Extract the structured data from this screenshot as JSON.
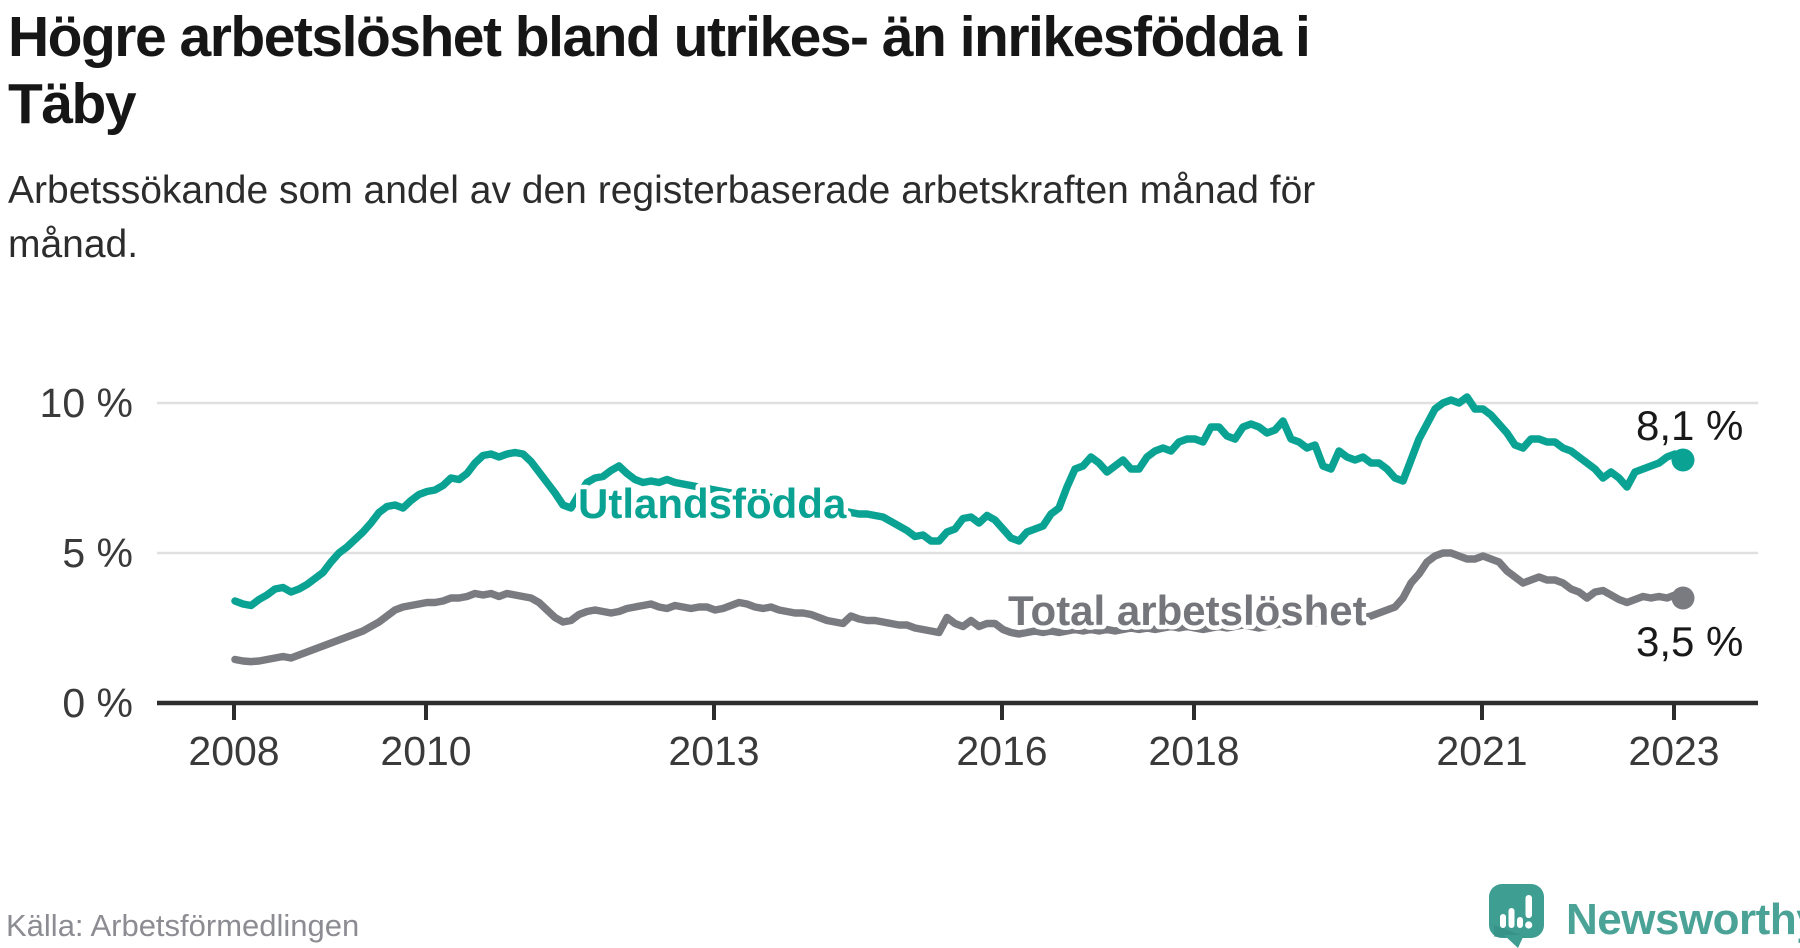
{
  "header": {
    "title_lines": [
      "Högre arbetslöshet bland utrikes- än inrikesfödda i",
      "Täby"
    ],
    "subtitle_lines": [
      "Arbetssökande som andel av den registerbaserade arbetskraften månad för",
      "månad."
    ]
  },
  "source": {
    "label": "Källa: Arbetsförmedlingen"
  },
  "branding": {
    "name": "Newsworthy",
    "icon": "newsworthy-speech-bubble-bar-chart",
    "icon_color": "#3E9E92",
    "text_color": "#4BA296"
  },
  "chart_data": {
    "type": "line",
    "title": "Högre arbetslöshet bland utrikes- än inrikesfödda i Täby",
    "subtitle": "Arbetssökande som andel av den registerbaserade arbetskraften månad för månad.",
    "unit": "%",
    "frequency": "monthly",
    "x_start": "2008-01",
    "x_end": "2023-02",
    "grid": "horizontal",
    "legend_position": "inline-labels",
    "ylim": [
      0,
      10.8
    ],
    "x_ticks": [
      "2008",
      "2010",
      "2013",
      "2016",
      "2018",
      "2021",
      "2023"
    ],
    "y_ticks": [
      {
        "value": 0,
        "label": "0 %"
      },
      {
        "value": 5,
        "label": "5 %"
      },
      {
        "value": 10,
        "label": "10 %"
      }
    ],
    "series": [
      {
        "name": "Utlandsfödda",
        "color": "#0AA393",
        "end_value": 8.1,
        "end_label": "8,1 %",
        "values": [
          3.4,
          3.3,
          3.25,
          3.45,
          3.6,
          3.8,
          3.85,
          3.7,
          3.8,
          3.95,
          4.15,
          4.35,
          4.7,
          5.0,
          5.2,
          5.45,
          5.7,
          6.0,
          6.35,
          6.55,
          6.6,
          6.5,
          6.75,
          6.95,
          7.05,
          7.1,
          7.25,
          7.5,
          7.45,
          7.65,
          8.0,
          8.25,
          8.3,
          8.2,
          8.3,
          8.35,
          8.3,
          8.05,
          7.7,
          7.35,
          7.0,
          6.6,
          6.5,
          6.95,
          7.35,
          7.5,
          7.55,
          7.75,
          7.9,
          7.65,
          7.45,
          7.35,
          7.4,
          7.35,
          7.45,
          7.35,
          7.3,
          7.25,
          7.2,
          7.15,
          7.1,
          7.05,
          7.0,
          6.95,
          6.9,
          6.9,
          6.95,
          6.85,
          6.8,
          6.75,
          6.7,
          6.6,
          6.55,
          6.5,
          6.45,
          6.4,
          6.4,
          6.35,
          6.3,
          6.3,
          6.25,
          6.2,
          6.05,
          5.9,
          5.75,
          5.55,
          5.6,
          5.4,
          5.4,
          5.7,
          5.8,
          6.15,
          6.2,
          6.0,
          6.25,
          6.1,
          5.8,
          5.5,
          5.4,
          5.7,
          5.8,
          5.9,
          6.3,
          6.5,
          7.2,
          7.8,
          7.9,
          8.2,
          8.0,
          7.7,
          7.9,
          8.1,
          7.8,
          7.8,
          8.2,
          8.4,
          8.5,
          8.4,
          8.7,
          8.8,
          8.8,
          8.7,
          9.2,
          9.2,
          8.9,
          8.8,
          9.2,
          9.3,
          9.2,
          9.0,
          9.1,
          9.4,
          8.8,
          8.7,
          8.5,
          8.6,
          7.9,
          7.8,
          8.4,
          8.2,
          8.1,
          8.2,
          8.0,
          8.0,
          7.8,
          7.5,
          7.4,
          8.1,
          8.8,
          9.3,
          9.8,
          10.0,
          10.1,
          10.0,
          10.2,
          9.8,
          9.8,
          9.6,
          9.3,
          9.0,
          8.6,
          8.5,
          8.8,
          8.8,
          8.7,
          8.7,
          8.5,
          8.4,
          8.2,
          8.0,
          7.8,
          7.5,
          7.7,
          7.5,
          7.2,
          7.7,
          7.8,
          7.9,
          8.0,
          8.2,
          8.3,
          8.1
        ]
      },
      {
        "name": "Total arbetslöshet",
        "color": "#7A7B80",
        "end_value": 3.5,
        "end_label": "3,5 %",
        "values": [
          1.45,
          1.4,
          1.38,
          1.4,
          1.45,
          1.5,
          1.55,
          1.5,
          1.6,
          1.7,
          1.8,
          1.9,
          2.0,
          2.1,
          2.2,
          2.3,
          2.4,
          2.55,
          2.7,
          2.9,
          3.1,
          3.2,
          3.25,
          3.3,
          3.35,
          3.35,
          3.4,
          3.5,
          3.5,
          3.55,
          3.65,
          3.6,
          3.65,
          3.55,
          3.65,
          3.6,
          3.55,
          3.5,
          3.35,
          3.1,
          2.85,
          2.7,
          2.75,
          2.95,
          3.05,
          3.1,
          3.05,
          3.0,
          3.05,
          3.15,
          3.2,
          3.25,
          3.3,
          3.2,
          3.15,
          3.25,
          3.2,
          3.15,
          3.2,
          3.2,
          3.1,
          3.15,
          3.25,
          3.35,
          3.3,
          3.2,
          3.15,
          3.2,
          3.1,
          3.05,
          3.0,
          3.0,
          2.95,
          2.85,
          2.75,
          2.7,
          2.65,
          2.9,
          2.8,
          2.75,
          2.75,
          2.7,
          2.65,
          2.6,
          2.6,
          2.5,
          2.45,
          2.4,
          2.35,
          2.85,
          2.65,
          2.55,
          2.75,
          2.55,
          2.65,
          2.65,
          2.45,
          2.35,
          2.3,
          2.35,
          2.4,
          2.35,
          2.4,
          2.35,
          2.4,
          2.45,
          2.4,
          2.45,
          2.4,
          2.45,
          2.4,
          2.45,
          2.5,
          2.45,
          2.5,
          2.45,
          2.5,
          2.55,
          2.5,
          2.55,
          2.5,
          2.45,
          2.5,
          2.55,
          2.5,
          2.55,
          2.6,
          2.55,
          2.5,
          2.55,
          2.6,
          2.65,
          2.6,
          2.65,
          2.7,
          2.65,
          2.7,
          2.75,
          2.8,
          2.75,
          2.8,
          2.85,
          2.9,
          3.0,
          3.1,
          3.2,
          3.5,
          4.0,
          4.3,
          4.7,
          4.9,
          5.0,
          5.0,
          4.9,
          4.8,
          4.8,
          4.9,
          4.8,
          4.7,
          4.4,
          4.2,
          4.0,
          4.1,
          4.2,
          4.1,
          4.1,
          4.0,
          3.8,
          3.7,
          3.5,
          3.7,
          3.75,
          3.6,
          3.45,
          3.35,
          3.45,
          3.55,
          3.5,
          3.55,
          3.5,
          3.6,
          3.5
        ]
      }
    ]
  }
}
